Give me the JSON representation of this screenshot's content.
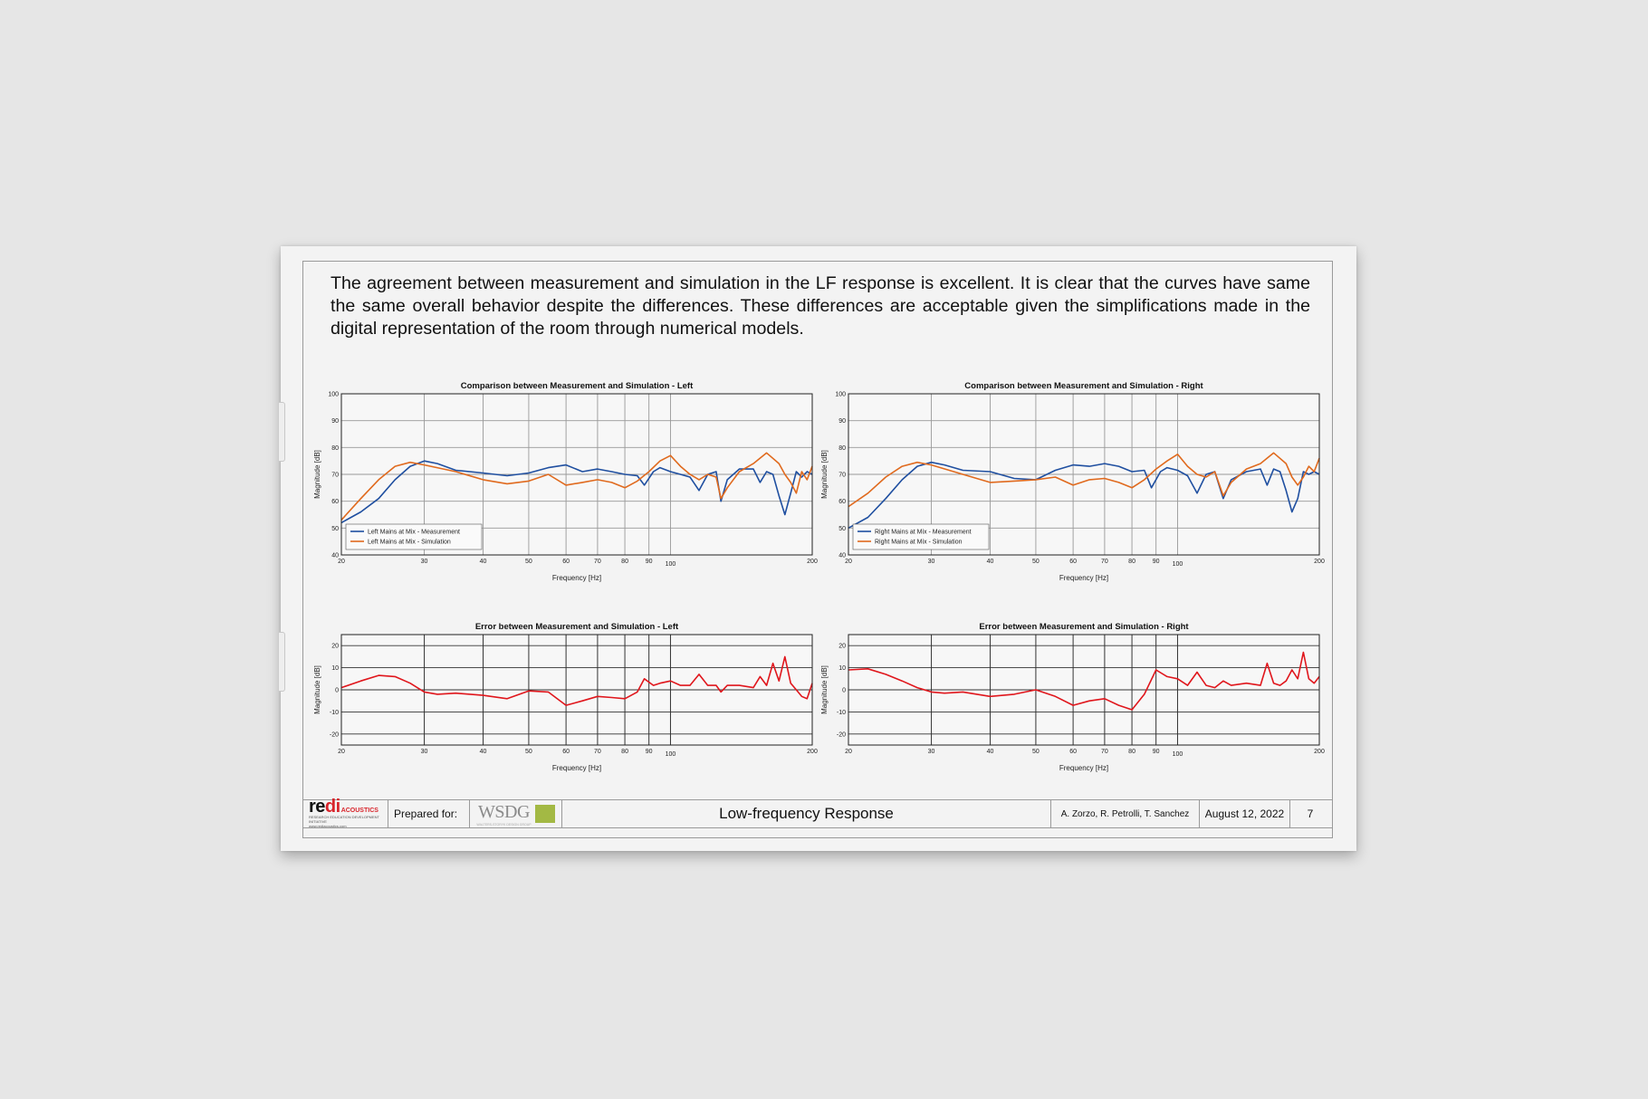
{
  "intro_text": "The agreement between measurement and simulation in the LF response is excellent. It is clear that the curves have same the same overall behavior despite the differences. These differences are acceptable given the simplifications made in the digital representation of the room through numerical models.",
  "colors": {
    "measurement": "#1f4fa0",
    "simulation": "#e06a1e",
    "error": "#e0161c"
  },
  "chart_data": [
    {
      "type": "line",
      "title": "Comparison between Measurement and Simulation - Left",
      "xlabel": "Frequency [Hz]",
      "ylabel": "Magnitude [dB]",
      "xscale": "log",
      "xlim": [
        20,
        200
      ],
      "ylim": [
        40,
        100
      ],
      "x_ticks": [
        20,
        30,
        40,
        50,
        60,
        70,
        80,
        90,
        100,
        200
      ],
      "y_ticks": [
        40,
        50,
        60,
        70,
        80,
        90,
        100
      ],
      "legend": "bottom-left",
      "series": [
        {
          "name": "Left Mains at Mix - Measurement",
          "color": "#1f4fa0",
          "points": [
            [
              20,
              52
            ],
            [
              22,
              56
            ],
            [
              24,
              61
            ],
            [
              26,
              68
            ],
            [
              28,
              73
            ],
            [
              30,
              75
            ],
            [
              32,
              74
            ],
            [
              35,
              71.5
            ],
            [
              40,
              70.5
            ],
            [
              45,
              69.5
            ],
            [
              50,
              70.5
            ],
            [
              55,
              72.5
            ],
            [
              60,
              73.5
            ],
            [
              65,
              71
            ],
            [
              70,
              72
            ],
            [
              75,
              71
            ],
            [
              80,
              70
            ],
            [
              85,
              69.5
            ],
            [
              88,
              66
            ],
            [
              92,
              71
            ],
            [
              95,
              72.5
            ],
            [
              100,
              71
            ],
            [
              105,
              70
            ],
            [
              110,
              69
            ],
            [
              115,
              64
            ],
            [
              120,
              70
            ],
            [
              125,
              71
            ],
            [
              128,
              60
            ],
            [
              132,
              68
            ],
            [
              140,
              72
            ],
            [
              150,
              72
            ],
            [
              155,
              67
            ],
            [
              160,
              71
            ],
            [
              165,
              70
            ],
            [
              170,
              62
            ],
            [
              175,
              55
            ],
            [
              180,
              63
            ],
            [
              185,
              71
            ],
            [
              190,
              69
            ],
            [
              195,
              71
            ],
            [
              200,
              70
            ]
          ]
        },
        {
          "name": "Left Mains at Mix - Simulation",
          "color": "#e06a1e",
          "points": [
            [
              20,
              53
            ],
            [
              22,
              61
            ],
            [
              24,
              68
            ],
            [
              26,
              73
            ],
            [
              28,
              74.5
            ],
            [
              30,
              73.5
            ],
            [
              35,
              71
            ],
            [
              40,
              68
            ],
            [
              45,
              66.5
            ],
            [
              50,
              67.5
            ],
            [
              55,
              70
            ],
            [
              60,
              66
            ],
            [
              65,
              67
            ],
            [
              70,
              68
            ],
            [
              75,
              67
            ],
            [
              80,
              65
            ],
            [
              85,
              67.5
            ],
            [
              90,
              71
            ],
            [
              95,
              75
            ],
            [
              100,
              77
            ],
            [
              105,
              73
            ],
            [
              110,
              70
            ],
            [
              115,
              68
            ],
            [
              120,
              70
            ],
            [
              125,
              69
            ],
            [
              128,
              61
            ],
            [
              132,
              65
            ],
            [
              140,
              71
            ],
            [
              150,
              74
            ],
            [
              160,
              78
            ],
            [
              170,
              74
            ],
            [
              175,
              70
            ],
            [
              180,
              67
            ],
            [
              185,
              63
            ],
            [
              190,
              71
            ],
            [
              195,
              68
            ],
            [
              200,
              73
            ]
          ]
        }
      ]
    },
    {
      "type": "line",
      "title": "Comparison between Measurement and Simulation - Right",
      "xlabel": "Frequency [Hz]",
      "ylabel": "Magnitude [dB]",
      "xscale": "log",
      "xlim": [
        20,
        200
      ],
      "ylim": [
        40,
        100
      ],
      "x_ticks": [
        20,
        30,
        40,
        50,
        60,
        70,
        80,
        90,
        100,
        200
      ],
      "y_ticks": [
        40,
        50,
        60,
        70,
        80,
        90,
        100
      ],
      "legend": "bottom-left",
      "series": [
        {
          "name": "Right Mains at Mix - Measurement",
          "color": "#1f4fa0",
          "points": [
            [
              20,
              50
            ],
            [
              22,
              54
            ],
            [
              24,
              61
            ],
            [
              26,
              68
            ],
            [
              28,
              73
            ],
            [
              30,
              74.5
            ],
            [
              32,
              73.5
            ],
            [
              35,
              71.5
            ],
            [
              40,
              71
            ],
            [
              45,
              68.5
            ],
            [
              50,
              68
            ],
            [
              55,
              71.5
            ],
            [
              60,
              73.5
            ],
            [
              65,
              73
            ],
            [
              70,
              74
            ],
            [
              75,
              73
            ],
            [
              80,
              71
            ],
            [
              85,
              71.5
            ],
            [
              88,
              65
            ],
            [
              92,
              71
            ],
            [
              95,
              72.5
            ],
            [
              100,
              71.5
            ],
            [
              105,
              69.5
            ],
            [
              110,
              63
            ],
            [
              115,
              70
            ],
            [
              120,
              71
            ],
            [
              125,
              61
            ],
            [
              130,
              68
            ],
            [
              140,
              71
            ],
            [
              150,
              72
            ],
            [
              155,
              66
            ],
            [
              160,
              72
            ],
            [
              165,
              71
            ],
            [
              170,
              64
            ],
            [
              175,
              56
            ],
            [
              180,
              61
            ],
            [
              185,
              71
            ],
            [
              190,
              70
            ],
            [
              195,
              71
            ],
            [
              200,
              70
            ]
          ]
        },
        {
          "name": "Right Mains at Mix - Simulation",
          "color": "#e06a1e",
          "points": [
            [
              20,
              58
            ],
            [
              22,
              63
            ],
            [
              24,
              69
            ],
            [
              26,
              73
            ],
            [
              28,
              74.5
            ],
            [
              30,
              73.5
            ],
            [
              35,
              70
            ],
            [
              40,
              67
            ],
            [
              45,
              67.5
            ],
            [
              50,
              68
            ],
            [
              55,
              69
            ],
            [
              60,
              66
            ],
            [
              65,
              68
            ],
            [
              70,
              68.5
            ],
            [
              75,
              67
            ],
            [
              80,
              65
            ],
            [
              85,
              68
            ],
            [
              90,
              72
            ],
            [
              95,
              75
            ],
            [
              100,
              77.5
            ],
            [
              105,
              73
            ],
            [
              110,
              70
            ],
            [
              115,
              69
            ],
            [
              120,
              71
            ],
            [
              125,
              62
            ],
            [
              130,
              67
            ],
            [
              140,
              72
            ],
            [
              150,
              74
            ],
            [
              160,
              78
            ],
            [
              170,
              74
            ],
            [
              175,
              69
            ],
            [
              180,
              66
            ],
            [
              185,
              69
            ],
            [
              190,
              73
            ],
            [
              195,
              71
            ],
            [
              200,
              76
            ]
          ]
        }
      ]
    },
    {
      "type": "line",
      "title": "Error between Measurement and Simulation - Left",
      "xlabel": "Frequency [Hz]",
      "ylabel": "Magnitude [dB]",
      "xscale": "log",
      "xlim": [
        20,
        200
      ],
      "ylim": [
        -25,
        25
      ],
      "x_ticks": [
        20,
        30,
        40,
        50,
        60,
        70,
        80,
        90,
        100,
        200
      ],
      "y_ticks": [
        -20,
        -10,
        0,
        10,
        20
      ],
      "series": [
        {
          "name": "",
          "color": "#e0161c",
          "points": [
            [
              20,
              1
            ],
            [
              22,
              4
            ],
            [
              24,
              6.5
            ],
            [
              26,
              6
            ],
            [
              28,
              3
            ],
            [
              30,
              -1
            ],
            [
              32,
              -2
            ],
            [
              35,
              -1.5
            ],
            [
              40,
              -2.5
            ],
            [
              45,
              -4
            ],
            [
              50,
              -0.5
            ],
            [
              55,
              -1
            ],
            [
              60,
              -7
            ],
            [
              65,
              -5
            ],
            [
              70,
              -3
            ],
            [
              75,
              -3.5
            ],
            [
              80,
              -4
            ],
            [
              85,
              -1
            ],
            [
              88,
              5
            ],
            [
              92,
              2
            ],
            [
              95,
              3
            ],
            [
              100,
              4
            ],
            [
              105,
              2
            ],
            [
              110,
              2
            ],
            [
              115,
              7
            ],
            [
              120,
              2
            ],
            [
              125,
              2
            ],
            [
              128,
              -1
            ],
            [
              132,
              2
            ],
            [
              140,
              2
            ],
            [
              150,
              1
            ],
            [
              155,
              6
            ],
            [
              160,
              2
            ],
            [
              165,
              12
            ],
            [
              170,
              4
            ],
            [
              175,
              15
            ],
            [
              180,
              3
            ],
            [
              185,
              0
            ],
            [
              190,
              -3
            ],
            [
              195,
              -4
            ],
            [
              200,
              3
            ]
          ]
        }
      ]
    },
    {
      "type": "line",
      "title": "Error between Measurement and Simulation - Right",
      "xlabel": "Frequency [Hz]",
      "ylabel": "Magnitude [dB]",
      "xscale": "log",
      "xlim": [
        20,
        200
      ],
      "ylim": [
        -25,
        25
      ],
      "x_ticks": [
        20,
        30,
        40,
        50,
        60,
        70,
        80,
        90,
        100,
        200
      ],
      "y_ticks": [
        -20,
        -10,
        0,
        10,
        20
      ],
      "series": [
        {
          "name": "",
          "color": "#e0161c",
          "points": [
            [
              20,
              9
            ],
            [
              22,
              9.5
            ],
            [
              24,
              7
            ],
            [
              26,
              4
            ],
            [
              28,
              1
            ],
            [
              30,
              -1
            ],
            [
              32,
              -1.5
            ],
            [
              35,
              -1
            ],
            [
              40,
              -3
            ],
            [
              45,
              -2
            ],
            [
              50,
              0
            ],
            [
              55,
              -3
            ],
            [
              60,
              -7
            ],
            [
              65,
              -5
            ],
            [
              70,
              -4
            ],
            [
              75,
              -7
            ],
            [
              80,
              -9
            ],
            [
              85,
              -2
            ],
            [
              90,
              9
            ],
            [
              95,
              6
            ],
            [
              100,
              5
            ],
            [
              105,
              2
            ],
            [
              110,
              8
            ],
            [
              115,
              2
            ],
            [
              120,
              1
            ],
            [
              125,
              4
            ],
            [
              130,
              2
            ],
            [
              140,
              3
            ],
            [
              150,
              2
            ],
            [
              155,
              12
            ],
            [
              160,
              3
            ],
            [
              165,
              2
            ],
            [
              170,
              4
            ],
            [
              175,
              9
            ],
            [
              180,
              5
            ],
            [
              185,
              17
            ],
            [
              190,
              5
            ],
            [
              195,
              3
            ],
            [
              200,
              6
            ]
          ]
        }
      ]
    }
  ],
  "footer": {
    "logo_redi_a": "re",
    "logo_redi_b": "di",
    "logo_acoustics": "ACOUSTICS",
    "logo_tagline": "RESEARCH EDUCATION DEVELOPMENT INITIATIVE",
    "logo_url": "www.rediacoustics.com",
    "prepared_for": "Prepared for:",
    "client_logo": "WSDG",
    "client_tagline": "WALTERS-STORYK DESIGN GROUP",
    "title": "Low-frequency Response",
    "authors": "A. Zorzo, R. Petrolli, T. Sanchez",
    "date": "August 12, 2022",
    "page": "7"
  }
}
